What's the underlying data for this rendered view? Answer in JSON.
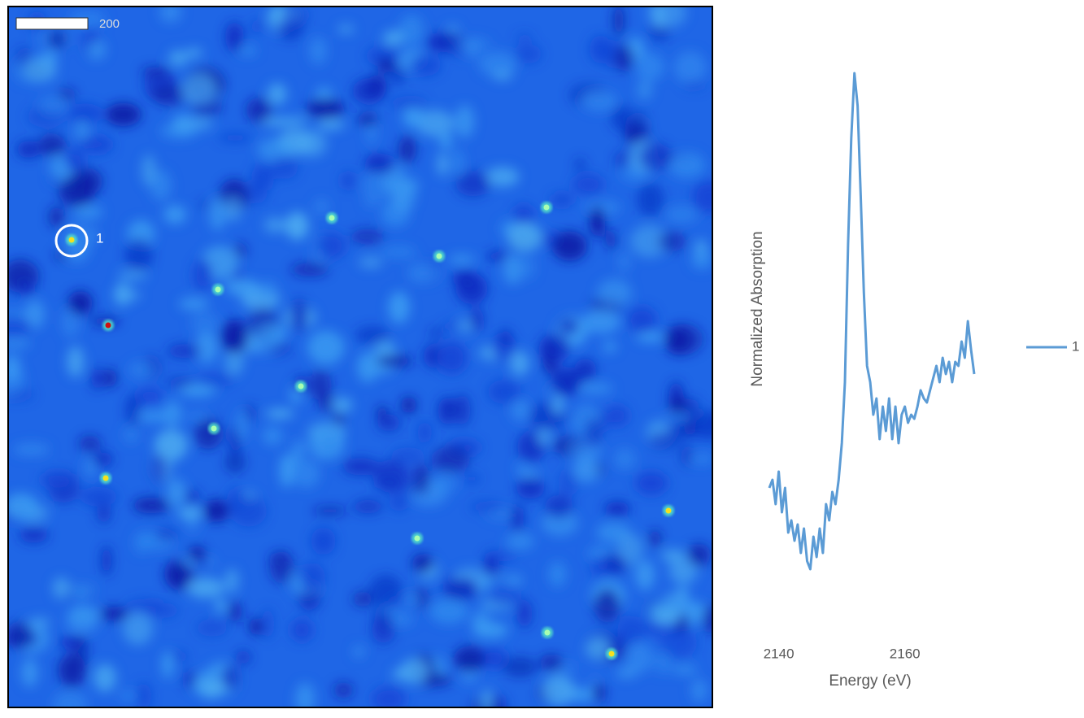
{
  "image": {
    "scale_label": "200",
    "marker_label": "1"
  },
  "chart_data": {
    "type": "line",
    "x_label": "Energy (eV)",
    "y_label": "Normalized Absorption",
    "x": [
      2138.5,
      2139,
      2139.5,
      2140,
      2140.5,
      2141,
      2141.5,
      2142,
      2142.5,
      2143,
      2143.5,
      2144,
      2144.5,
      2145,
      2145.5,
      2146,
      2146.5,
      2147,
      2147.5,
      2148,
      2148.5,
      2149,
      2149.5,
      2150,
      2150.5,
      2151,
      2151.5,
      2152,
      2152.5,
      2153,
      2153.5,
      2154,
      2154.5,
      2155,
      2155.5,
      2156,
      2156.5,
      2157,
      2157.5,
      2158,
      2158.5,
      2159,
      2159.5,
      2160,
      2160.5,
      2161,
      2161.5,
      2162,
      2162.5,
      2163,
      2163.5,
      2164,
      2164.5,
      2165,
      2165.5,
      2166,
      2166.5,
      2167,
      2167.5,
      2168,
      2168.5,
      2169,
      2169.5,
      2170,
      2170.5,
      2171
    ],
    "series": [
      {
        "name": "1",
        "color": "#5b9bd5",
        "values": [
          0.32,
          0.34,
          0.28,
          0.36,
          0.26,
          0.32,
          0.21,
          0.24,
          0.19,
          0.23,
          0.16,
          0.22,
          0.14,
          0.12,
          0.2,
          0.15,
          0.22,
          0.16,
          0.28,
          0.24,
          0.31,
          0.28,
          0.34,
          0.43,
          0.58,
          0.92,
          1.18,
          1.34,
          1.26,
          1.04,
          0.8,
          0.62,
          0.58,
          0.5,
          0.54,
          0.44,
          0.52,
          0.46,
          0.54,
          0.44,
          0.52,
          0.43,
          0.5,
          0.52,
          0.48,
          0.5,
          0.49,
          0.52,
          0.56,
          0.54,
          0.53,
          0.56,
          0.59,
          0.62,
          0.58,
          0.64,
          0.6,
          0.63,
          0.58,
          0.63,
          0.62,
          0.68,
          0.64,
          0.73,
          0.66,
          0.6
        ]
      }
    ],
    "xlim": [
      2138.5,
      2171
    ],
    "ylim": [
      0,
      1.4
    ],
    "xticks": [
      2140,
      2160
    ],
    "legend": "right"
  }
}
